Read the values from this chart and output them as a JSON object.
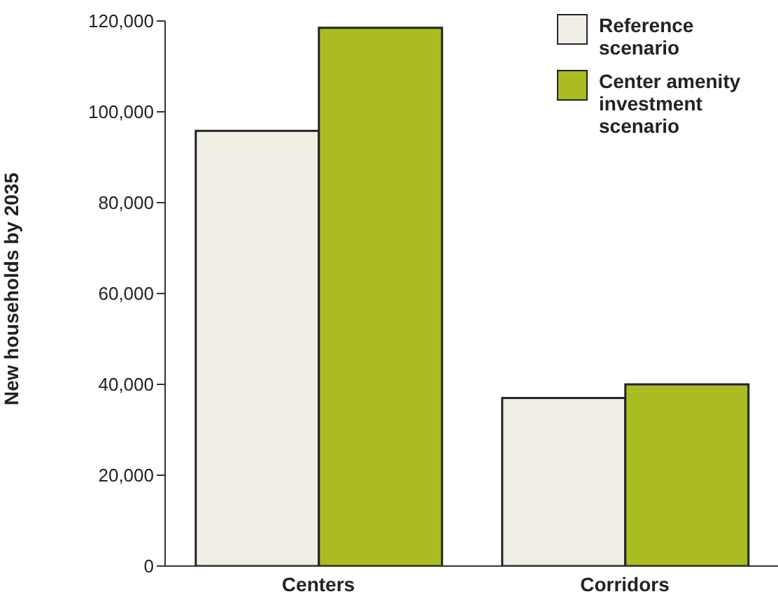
{
  "chart_data": {
    "type": "bar",
    "ylabel": "New households by 2035",
    "categories": [
      "Centers",
      "Corridors"
    ],
    "series": [
      {
        "name": "Reference scenario",
        "color": "#f1eee6",
        "values": [
          95800,
          37000
        ]
      },
      {
        "name": "Center amenity investment scenario",
        "color": "#abbc22",
        "values": [
          118500,
          40000
        ]
      }
    ],
    "ylim": [
      0,
      120000
    ],
    "yticks": [
      0,
      {
        "value": 20000,
        "label": "20,000"
      },
      {
        "value": 40000,
        "label": "40,000"
      },
      {
        "value": 60000,
        "label": "60,000"
      },
      {
        "value": 80000,
        "label": "80,000"
      },
      {
        "value": 100000,
        "label": "100,000"
      },
      {
        "value": 120000,
        "label": "120,000"
      }
    ],
    "grid": false,
    "legend": "top right"
  }
}
